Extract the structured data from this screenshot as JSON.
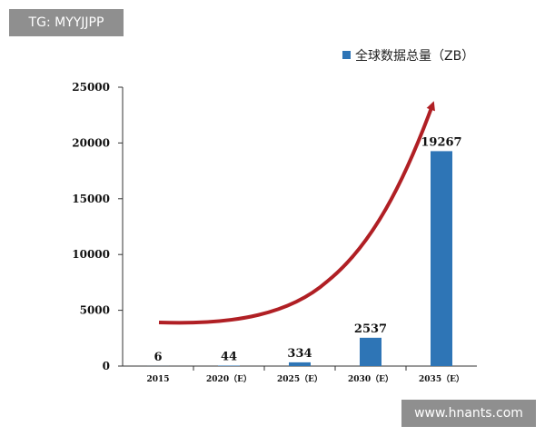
{
  "watermark_top_left": "TG: MYYJJPP",
  "watermark_bottom_right": "www.hnants.com",
  "colors": {
    "bar": "#2e75b6",
    "trend_arrow": "#b01f24",
    "watermark_bg": "#8f8f8f"
  },
  "chart_data": {
    "type": "bar",
    "categories": [
      "2015",
      "2020（E）",
      "2025（E）",
      "2030（E）",
      "2035（E）"
    ],
    "series": [
      {
        "name": "全球数据总量（ZB）",
        "values": [
          6,
          44,
          334,
          2537,
          19267
        ]
      }
    ],
    "data_labels": [
      "6",
      "44",
      "334",
      "2537",
      "19267"
    ],
    "yticks": [
      "0",
      "5000",
      "10000",
      "15000",
      "20000",
      "25000"
    ],
    "ylim": [
      0,
      25000
    ],
    "grid": false,
    "legend": "top-right",
    "annotation": "trend-arrow"
  }
}
